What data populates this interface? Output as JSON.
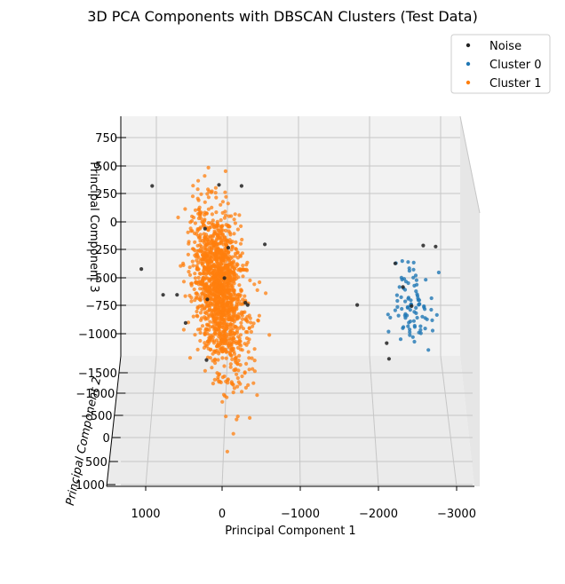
{
  "chart_data": {
    "type": "scatter",
    "projection": "3d",
    "title": "3D PCA Components with DBSCAN Clusters (Test Data)",
    "xlabel": "Principal Component 1",
    "ylabel": "Principal Component 2",
    "zlabel": "Principal Component 3",
    "xticks": [
      "1000",
      "0",
      "−1000",
      "−2000",
      "−3000"
    ],
    "yticks": [
      "−1500",
      "−1000",
      "−500",
      "0",
      "500",
      "1000"
    ],
    "zticks": [
      "750",
      "500",
      "250",
      "0",
      "−250",
      "−500",
      "−750",
      "−1000"
    ],
    "legend_position": "top-right",
    "grid": true,
    "series": [
      {
        "name": "Noise",
        "color": "#222222",
        "points": [
          [
            900,
            320
          ],
          [
            40,
            330
          ],
          [
            -250,
            320
          ],
          [
            -550,
            -200
          ],
          [
            1040,
            -420
          ],
          [
            760,
            -650
          ],
          [
            580,
            -650
          ],
          [
            470,
            -900
          ],
          [
            190,
            -690
          ],
          [
            220,
            -60
          ],
          [
            -30,
            -500
          ],
          [
            -300,
            -720
          ],
          [
            -330,
            -740
          ],
          [
            -80,
            -230
          ],
          [
            200,
            -1230
          ],
          [
            -2590,
            -210
          ],
          [
            -2750,
            -220
          ],
          [
            -1740,
            -740
          ],
          [
            -2230,
            -370
          ],
          [
            -2330,
            -580
          ],
          [
            -2440,
            -750
          ],
          [
            -2120,
            -1080
          ],
          [
            -2150,
            -1220
          ]
        ]
      },
      {
        "name": "Cluster 0",
        "color": "#1f77b4",
        "cluster_center": [
          -2480,
          -770
        ],
        "cluster_spread": [
          120,
          200
        ],
        "n_points": 90
      },
      {
        "name": "Cluster 1",
        "color": "#ff7f0e",
        "cluster_center": [
          30,
          -610
        ],
        "cluster_spread": [
          170,
          340
        ],
        "n_points": 1500
      }
    ]
  }
}
